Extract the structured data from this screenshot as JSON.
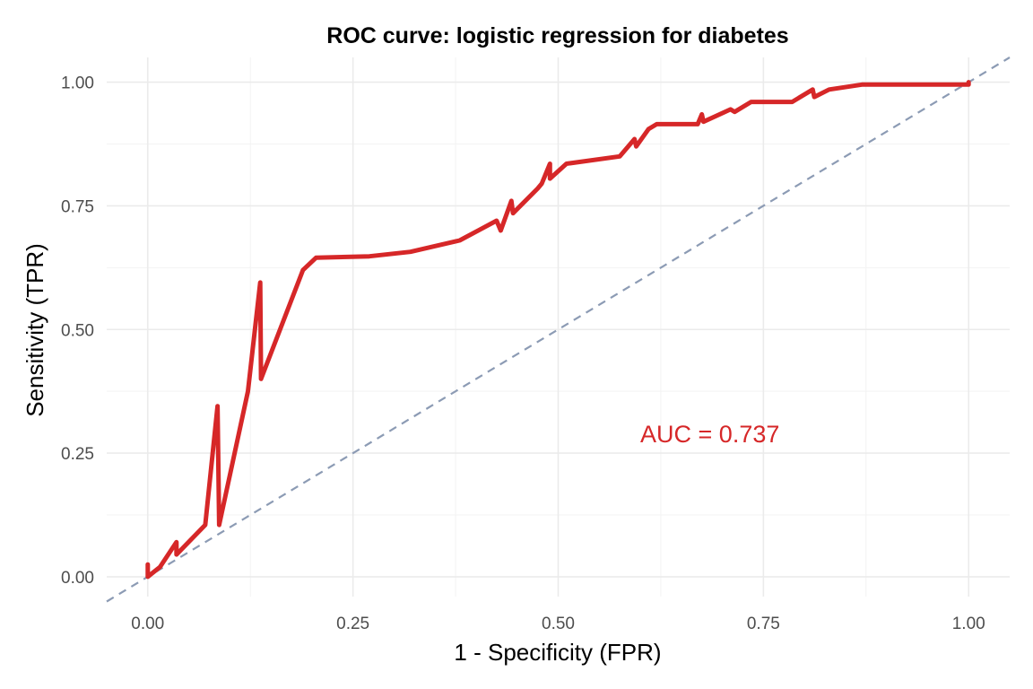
{
  "chart_data": {
    "type": "line",
    "title": "ROC curve: logistic regression for diabetes",
    "xlabel": "1 - Specificity (FPR)",
    "ylabel": "Sensitivity (TPR)",
    "xlim": [
      -0.05,
      1.05
    ],
    "ylim": [
      -0.04,
      1.05
    ],
    "x_ticks": [
      0.0,
      0.25,
      0.5,
      0.75,
      1.0
    ],
    "x_tick_labels": [
      "0.00",
      "0.25",
      "0.50",
      "0.75",
      "1.00"
    ],
    "y_ticks": [
      0.0,
      0.25,
      0.5,
      0.75,
      1.0
    ],
    "y_tick_labels": [
      "0.00",
      "0.25",
      "0.50",
      "0.75",
      "1.00"
    ],
    "grid": true,
    "legend": "none",
    "series": [
      {
        "color": "#d62728",
        "style": "solid",
        "points": [
          [
            0.0,
            0.025
          ],
          [
            0.0,
            0.0
          ],
          [
            0.015,
            0.02
          ],
          [
            0.035,
            0.07
          ],
          [
            0.035,
            0.045
          ],
          [
            0.07,
            0.105
          ],
          [
            0.085,
            0.345
          ],
          [
            0.087,
            0.105
          ],
          [
            0.122,
            0.375
          ],
          [
            0.137,
            0.595
          ],
          [
            0.138,
            0.4
          ],
          [
            0.189,
            0.62
          ],
          [
            0.205,
            0.645
          ],
          [
            0.27,
            0.648
          ],
          [
            0.32,
            0.657
          ],
          [
            0.38,
            0.68
          ],
          [
            0.425,
            0.72
          ],
          [
            0.43,
            0.7
          ],
          [
            0.443,
            0.76
          ],
          [
            0.445,
            0.735
          ],
          [
            0.475,
            0.785
          ],
          [
            0.48,
            0.795
          ],
          [
            0.49,
            0.835
          ],
          [
            0.49,
            0.805
          ],
          [
            0.51,
            0.835
          ],
          [
            0.575,
            0.85
          ],
          [
            0.593,
            0.885
          ],
          [
            0.595,
            0.87
          ],
          [
            0.61,
            0.905
          ],
          [
            0.62,
            0.915
          ],
          [
            0.67,
            0.915
          ],
          [
            0.675,
            0.935
          ],
          [
            0.677,
            0.92
          ],
          [
            0.71,
            0.945
          ],
          [
            0.715,
            0.94
          ],
          [
            0.735,
            0.96
          ],
          [
            0.785,
            0.96
          ],
          [
            0.81,
            0.985
          ],
          [
            0.812,
            0.97
          ],
          [
            0.83,
            0.985
          ],
          [
            0.87,
            0.995
          ],
          [
            1.0,
            0.995
          ],
          [
            1.0,
            1.0
          ]
        ]
      },
      {
        "color": "#8c9bb4",
        "style": "dashed",
        "points": [
          [
            -0.05,
            -0.05
          ],
          [
            1.05,
            1.05
          ]
        ]
      }
    ],
    "annotations": [
      {
        "text": "AUC = 0.737",
        "x": 0.6,
        "y": 0.29,
        "color": "#d62728"
      }
    ]
  }
}
